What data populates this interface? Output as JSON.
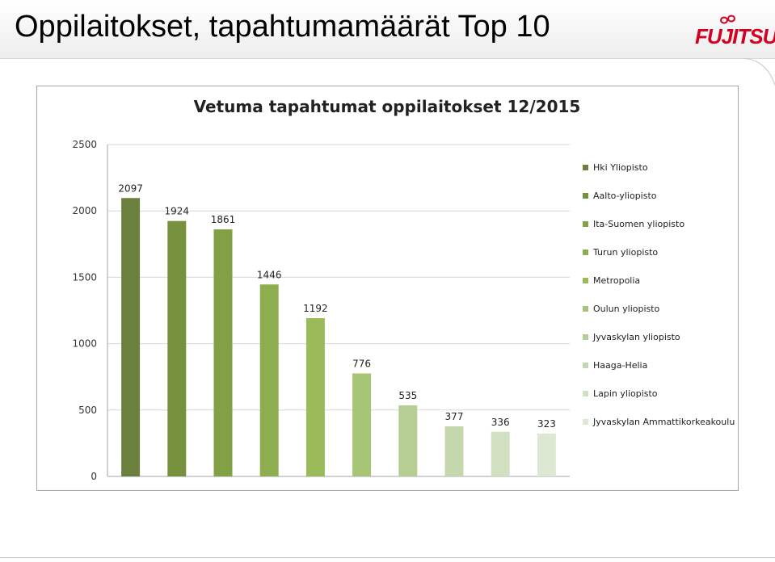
{
  "slide": {
    "title": "Oppilaitokset, tapahtumamäärät Top 10",
    "logo_text": "FUJITSU",
    "logo_color": "#d40022"
  },
  "chart_data": {
    "type": "bar",
    "title": "Vetuma tapahtumat oppilaitokset 12/2015",
    "xlabel": "",
    "ylabel": "",
    "ylim": [
      0,
      2500
    ],
    "yticks": [
      "0",
      "500",
      "1000",
      "1500",
      "2000",
      "2500"
    ],
    "grid": true,
    "legend_position": "right",
    "categories": [
      "Hki Yliopisto",
      "Aalto-yliopisto",
      "Ita-Suomen yliopisto",
      "Turun yliopisto",
      "Metropolia",
      "Oulun yliopisto",
      "Jyvaskylan yliopisto",
      "Haaga-Helia",
      "Lapin yliopisto",
      "Jyvaskylan Ammattikorkeakoulu"
    ],
    "values": [
      2097,
      1924,
      1861,
      1446,
      1192,
      776,
      535,
      377,
      336,
      323
    ],
    "colors": [
      "#6b7f3e",
      "#77913f",
      "#82a044",
      "#8ead4f",
      "#9bba5a",
      "#a8c476",
      "#b6ce93",
      "#c5d8ad",
      "#d1e0c0",
      "#dde8d2"
    ]
  }
}
